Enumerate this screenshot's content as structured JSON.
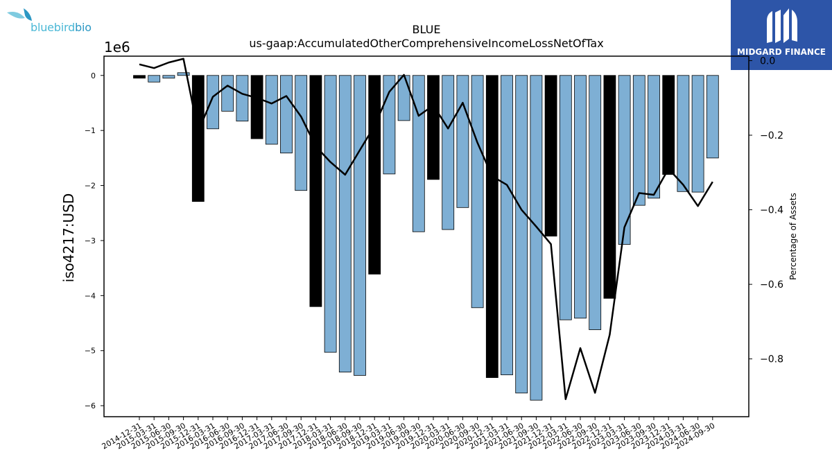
{
  "logos": {
    "left_text_a": "bluebird",
    "left_text_b": "bio",
    "right_text": "MIDGARD FINANCE"
  },
  "colors": {
    "bar_light": "#7eafd4",
    "bar_dark": "#000000",
    "line": "#000000",
    "logo_left": "#4bb8d6",
    "logo_right_bg": "#2d55a8"
  },
  "chart_data": {
    "type": "bar",
    "title": "BLUE",
    "subtitle": "us-gaap:AccumulatedOtherComprehensiveIncomeLossNetOfTax",
    "ylabel": "iso4217:USD",
    "y2label": "Percentage of Assets",
    "y_multiplier_label": "1e6",
    "ylim": [
      -6.2,
      0.35
    ],
    "y2lim": [
      -0.955,
      0.012
    ],
    "y_ticks": [
      0,
      -1,
      -2,
      -3,
      -4,
      -5,
      -6
    ],
    "y_tick_labels": [
      "0",
      "−1",
      "−2",
      "−3",
      "−4",
      "−5",
      "−6"
    ],
    "y2_ticks": [
      0.0,
      -0.2,
      -0.4,
      -0.6,
      -0.8
    ],
    "y2_tick_labels": [
      "0.0",
      "−0.2",
      "−0.4",
      "−0.6",
      "−0.8"
    ],
    "grid": false,
    "categories": [
      "2014-12-31",
      "2015-03-31",
      "2015-06-30",
      "2015-09-30",
      "2015-12-31",
      "2016-03-31",
      "2016-06-30",
      "2016-09-30",
      "2016-12-31",
      "2017-03-31",
      "2017-06-30",
      "2017-09-30",
      "2017-12-31",
      "2018-03-31",
      "2018-06-30",
      "2018-09-30",
      "2018-12-31",
      "2019-03-31",
      "2019-06-30",
      "2019-09-30",
      "2019-12-31",
      "2020-03-31",
      "2020-06-30",
      "2020-09-30",
      "2020-12-31",
      "2021-03-31",
      "2021-06-30",
      "2021-09-30",
      "2021-12-31",
      "2022-03-31",
      "2022-06-30",
      "2022-09-30",
      "2022-12-31",
      "2023-03-31",
      "2023-06-30",
      "2023-09-30",
      "2023-12-31",
      "2024-03-31",
      "2024-06-30",
      "2024-09-30"
    ],
    "series": [
      {
        "type": "bar",
        "values": [
          -0.05,
          -0.12,
          -0.05,
          0.05,
          -2.29,
          -0.97,
          -0.65,
          -0.83,
          -1.15,
          -1.25,
          -1.41,
          -2.09,
          -4.2,
          -5.03,
          -5.39,
          -5.45,
          -3.61,
          -1.79,
          -0.82,
          -2.84,
          -1.89,
          -2.8,
          -2.4,
          -4.22,
          -5.49,
          -5.44,
          -5.77,
          -5.9,
          -2.92,
          -4.44,
          -4.41,
          -4.62,
          -4.05,
          -3.07,
          -2.36,
          -2.23,
          -1.8,
          -2.11,
          -2.12,
          -1.5
        ],
        "dark": [
          true,
          false,
          false,
          false,
          true,
          false,
          false,
          false,
          true,
          false,
          false,
          false,
          true,
          false,
          false,
          false,
          true,
          false,
          false,
          false,
          true,
          false,
          false,
          false,
          true,
          false,
          false,
          false,
          true,
          false,
          false,
          false,
          true,
          false,
          false,
          false,
          true,
          false,
          false,
          false
        ]
      },
      {
        "type": "line",
        "axis": "right",
        "values": [
          -0.01,
          -0.02,
          -0.005,
          0.005,
          -0.19,
          -0.097,
          -0.067,
          -0.089,
          -0.1,
          -0.115,
          -0.095,
          -0.15,
          -0.23,
          -0.272,
          -0.306,
          -0.24,
          -0.175,
          -0.084,
          -0.038,
          -0.148,
          -0.12,
          -0.182,
          -0.113,
          -0.22,
          -0.31,
          -0.333,
          -0.4,
          -0.445,
          -0.492,
          -0.908,
          -0.771,
          -0.891,
          -0.735,
          -0.447,
          -0.355,
          -0.36,
          -0.29,
          -0.333,
          -0.39,
          -0.325
        ]
      }
    ]
  }
}
